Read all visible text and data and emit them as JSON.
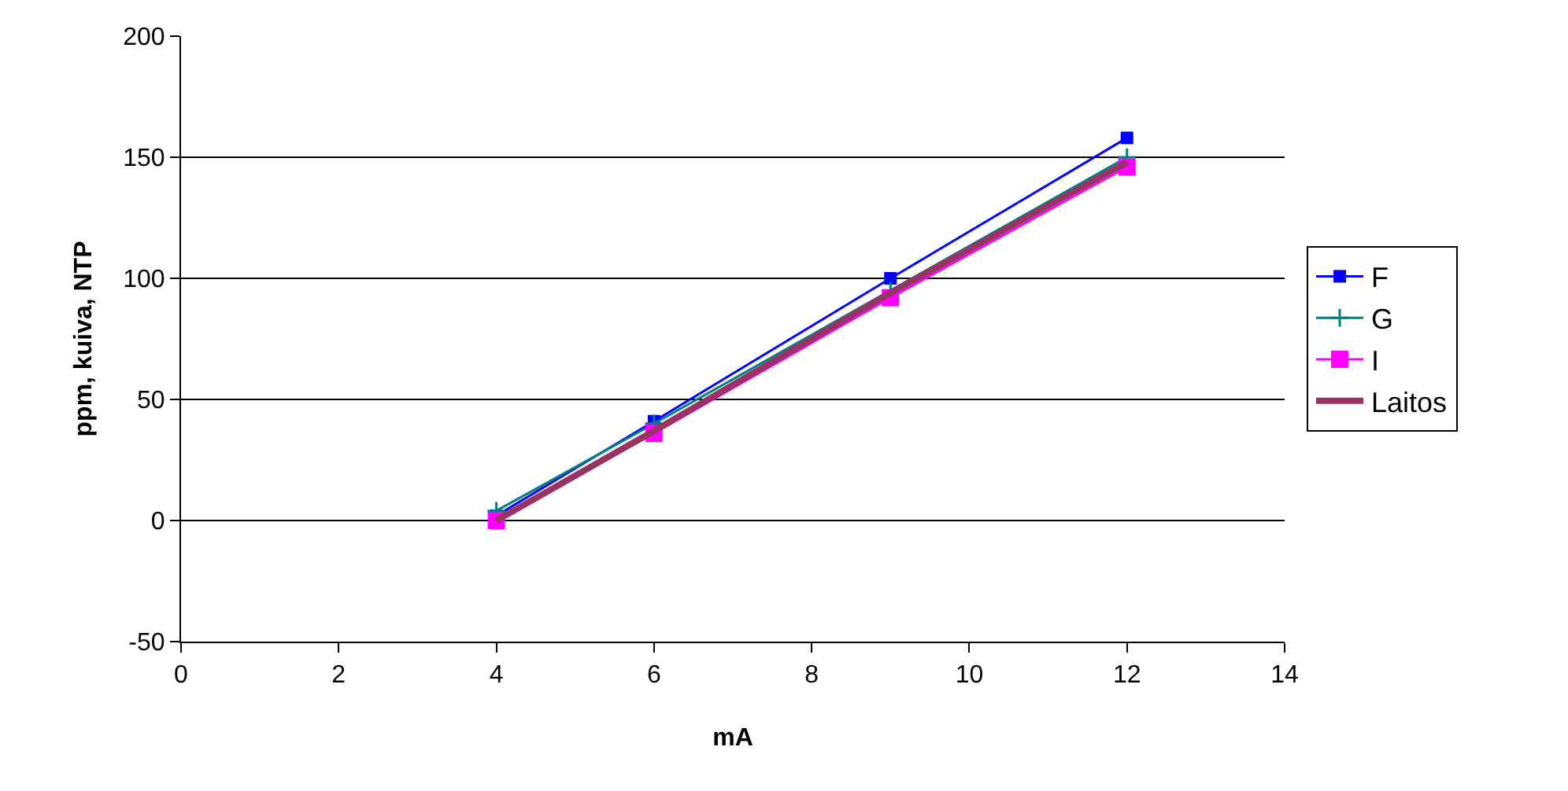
{
  "chart_data": {
    "type": "line",
    "xlabel": "mA",
    "ylabel": "ppm, kuiva, NTP",
    "x": [
      4,
      6,
      9,
      12
    ],
    "series": [
      {
        "name": "F",
        "color": "#0000ff",
        "values": [
          2,
          41,
          100,
          158
        ],
        "marker": "square"
      },
      {
        "name": "G",
        "color": "#008080",
        "values": [
          4,
          40,
          95,
          150
        ],
        "marker": "cross"
      },
      {
        "name": "I",
        "color": "#ff00ff",
        "values": [
          0,
          36,
          92,
          146
        ],
        "marker": "square"
      },
      {
        "name": "Laitos",
        "color": "#993366",
        "values": [
          0,
          37,
          94,
          148
        ],
        "marker": "none"
      }
    ],
    "xlim": [
      0,
      14
    ],
    "xticks": [
      0,
      2,
      4,
      6,
      8,
      10,
      12,
      14
    ],
    "ylim": [
      -50,
      200
    ],
    "yticks": [
      -50,
      0,
      50,
      100,
      150,
      200
    ],
    "grid": "y",
    "legend": "right",
    "line_style": "solid"
  }
}
